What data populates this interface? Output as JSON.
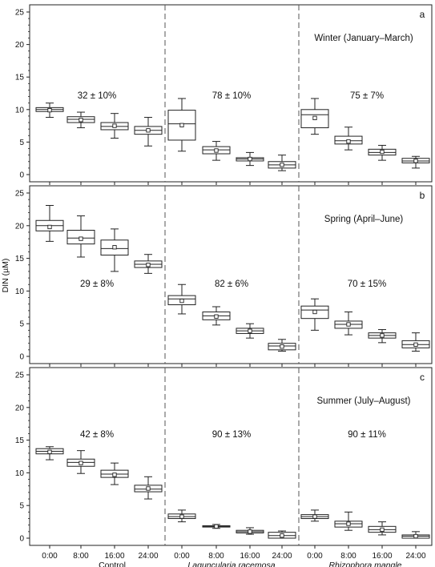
{
  "chart_data": {
    "type": "box",
    "ylabel": "DIN (µM)",
    "ylim": [
      0,
      25
    ],
    "yticks": [
      0,
      5,
      10,
      15,
      20,
      25
    ],
    "time_labels": [
      "0:00",
      "8:00",
      "16:00",
      "24:00"
    ],
    "groups": [
      {
        "label": "Control",
        "italic": false
      },
      {
        "label": "Laguncularia racemosa",
        "italic": true
      },
      {
        "label": "Rhizophora mangle",
        "italic": true
      }
    ],
    "panels": [
      {
        "letter": "a",
        "season": "Winter (January–March)",
        "percent_labels": [
          "32 ± 10%",
          "78 ± 10%",
          "75 ± 7%"
        ],
        "groups": [
          [
            {
              "wlo": 8.8,
              "q1": 9.7,
              "med": 10.0,
              "q3": 10.3,
              "whi": 11.0,
              "mean": 9.9
            },
            {
              "wlo": 7.2,
              "q1": 8.0,
              "med": 8.5,
              "q3": 8.9,
              "whi": 9.6,
              "mean": 8.4
            },
            {
              "wlo": 5.6,
              "q1": 6.9,
              "med": 7.4,
              "q3": 8.0,
              "whi": 9.4,
              "mean": 7.5
            },
            {
              "wlo": 4.4,
              "q1": 6.2,
              "med": 6.8,
              "q3": 7.4,
              "whi": 8.8,
              "mean": 6.8
            }
          ],
          [
            {
              "wlo": 3.6,
              "q1": 5.3,
              "med": 7.8,
              "q3": 9.9,
              "whi": 11.7,
              "mean": 7.6
            },
            {
              "wlo": 2.2,
              "q1": 3.2,
              "med": 3.8,
              "q3": 4.3,
              "whi": 5.1,
              "mean": 3.7
            },
            {
              "wlo": 1.4,
              "q1": 2.1,
              "med": 2.4,
              "q3": 2.6,
              "whi": 3.4,
              "mean": 2.4
            },
            {
              "wlo": 0.6,
              "q1": 1.0,
              "med": 1.5,
              "q3": 2.0,
              "whi": 3.0,
              "mean": 1.5
            }
          ],
          [
            {
              "wlo": 6.2,
              "q1": 7.2,
              "med": 9.2,
              "q3": 10.0,
              "whi": 11.7,
              "mean": 8.7
            },
            {
              "wlo": 3.8,
              "q1": 4.7,
              "med": 5.2,
              "q3": 5.9,
              "whi": 7.3,
              "mean": 5.1
            },
            {
              "wlo": 2.2,
              "q1": 3.0,
              "med": 3.4,
              "q3": 3.9,
              "whi": 4.5,
              "mean": 3.5
            },
            {
              "wlo": 1.0,
              "q1": 1.8,
              "med": 2.1,
              "q3": 2.5,
              "whi": 2.8,
              "mean": 2.1
            }
          ]
        ]
      },
      {
        "letter": "b",
        "season": "Spring (April–June)",
        "percent_labels": [
          "29 ± 8%",
          "82 ± 6%",
          "70 ± 15%"
        ],
        "groups": [
          [
            {
              "wlo": 17.6,
              "q1": 19.2,
              "med": 20.0,
              "q3": 20.8,
              "whi": 23.1,
              "mean": 19.8
            },
            {
              "wlo": 15.2,
              "q1": 17.2,
              "med": 18.1,
              "q3": 19.3,
              "whi": 21.5,
              "mean": 18.0
            },
            {
              "wlo": 13.0,
              "q1": 15.5,
              "med": 16.5,
              "q3": 17.8,
              "whi": 19.5,
              "mean": 16.7
            },
            {
              "wlo": 12.7,
              "q1": 13.6,
              "med": 14.1,
              "q3": 14.6,
              "whi": 15.6,
              "mean": 14.0
            }
          ],
          [
            {
              "wlo": 6.5,
              "q1": 7.9,
              "med": 8.8,
              "q3": 9.3,
              "whi": 11.0,
              "mean": 8.5
            },
            {
              "wlo": 4.8,
              "q1": 5.6,
              "med": 6.2,
              "q3": 6.8,
              "whi": 7.6,
              "mean": 6.1
            },
            {
              "wlo": 2.8,
              "q1": 3.5,
              "med": 3.9,
              "q3": 4.3,
              "whi": 5.0,
              "mean": 3.9
            },
            {
              "wlo": 0.8,
              "q1": 1.0,
              "med": 1.6,
              "q3": 2.0,
              "whi": 2.6,
              "mean": 1.5
            }
          ],
          [
            {
              "wlo": 4.0,
              "q1": 5.8,
              "med": 7.1,
              "q3": 7.7,
              "whi": 8.8,
              "mean": 6.8
            },
            {
              "wlo": 3.3,
              "q1": 4.3,
              "med": 4.9,
              "q3": 5.4,
              "whi": 6.8,
              "mean": 4.9
            },
            {
              "wlo": 2.1,
              "q1": 2.8,
              "med": 3.2,
              "q3": 3.6,
              "whi": 4.1,
              "mean": 3.2
            },
            {
              "wlo": 0.8,
              "q1": 1.3,
              "med": 1.8,
              "q3": 2.4,
              "whi": 3.6,
              "mean": 1.8
            }
          ]
        ]
      },
      {
        "letter": "c",
        "season": "Summer (July–August)",
        "percent_labels": [
          "42 ± 8%",
          "90 ± 13%",
          "90 ± 11%"
        ],
        "groups": [
          [
            {
              "wlo": 12.0,
              "q1": 12.9,
              "med": 13.3,
              "q3": 13.7,
              "whi": 14.0,
              "mean": 13.2
            },
            {
              "wlo": 9.9,
              "q1": 11.0,
              "med": 11.6,
              "q3": 12.1,
              "whi": 13.4,
              "mean": 11.5
            },
            {
              "wlo": 8.2,
              "q1": 9.3,
              "med": 9.8,
              "q3": 10.4,
              "whi": 11.5,
              "mean": 9.7
            },
            {
              "wlo": 6.0,
              "q1": 7.1,
              "med": 7.5,
              "q3": 8.1,
              "whi": 9.4,
              "mean": 7.6
            }
          ],
          [
            {
              "wlo": 2.5,
              "q1": 3.0,
              "med": 3.3,
              "q3": 3.7,
              "whi": 4.3,
              "mean": 3.3
            },
            {
              "wlo": 1.5,
              "q1": 1.7,
              "med": 1.8,
              "q3": 1.9,
              "whi": 2.1,
              "mean": 1.8
            },
            {
              "wlo": 0.6,
              "q1": 0.8,
              "med": 1.0,
              "q3": 1.2,
              "whi": 1.6,
              "mean": 1.0
            },
            {
              "wlo": 0.0,
              "q1": 0.0,
              "med": 0.4,
              "q3": 0.9,
              "whi": 1.1,
              "mean": 0.4
            }
          ],
          [
            {
              "wlo": 2.6,
              "q1": 3.0,
              "med": 3.3,
              "q3": 3.6,
              "whi": 4.3,
              "mean": 3.3
            },
            {
              "wlo": 1.2,
              "q1": 1.7,
              "med": 2.2,
              "q3": 2.6,
              "whi": 4.0,
              "mean": 2.2
            },
            {
              "wlo": 0.5,
              "q1": 0.9,
              "med": 1.3,
              "q3": 1.8,
              "whi": 2.5,
              "mean": 1.3
            },
            {
              "wlo": 0.0,
              "q1": 0.0,
              "med": 0.3,
              "q3": 0.5,
              "whi": 1.0,
              "mean": 0.3
            }
          ]
        ]
      }
    ]
  }
}
